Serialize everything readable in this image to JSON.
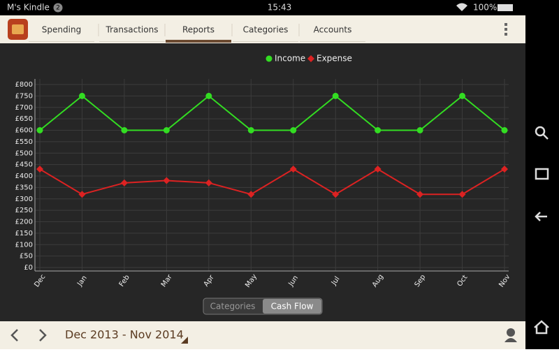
{
  "status": {
    "device": "M's Kindle",
    "badge": "2",
    "time": "15:43",
    "battery": "100%"
  },
  "tabs": [
    "Spending",
    "Transactions",
    "Reports",
    "Categories",
    "Accounts"
  ],
  "chart_data": {
    "type": "line",
    "categories": [
      "Dec",
      "Jan",
      "Feb",
      "Mar",
      "Apr",
      "May",
      "Jun",
      "Jul",
      "Aug",
      "Sep",
      "Oct",
      "Nov"
    ],
    "series": [
      {
        "name": "Income",
        "color": "#33dd22",
        "marker": "circle",
        "values": [
          600,
          750,
          600,
          600,
          750,
          600,
          600,
          750,
          600,
          600,
          750,
          600
        ]
      },
      {
        "name": "Expense",
        "color": "#dd2222",
        "marker": "diamond",
        "values": [
          430,
          320,
          370,
          380,
          370,
          320,
          430,
          320,
          430,
          320,
          320,
          430
        ]
      }
    ],
    "ylim": [
      0,
      800
    ],
    "yticks": [
      {
        "value": 0,
        "label": "£0"
      },
      {
        "value": 50,
        "label": "£50"
      },
      {
        "value": 100,
        "label": "£100"
      },
      {
        "value": 150,
        "label": "£150"
      },
      {
        "value": 200,
        "label": "£200"
      },
      {
        "value": 250,
        "label": "£250"
      },
      {
        "value": 300,
        "label": "£300"
      },
      {
        "value": 350,
        "label": "£350"
      },
      {
        "value": 400,
        "label": "£400"
      },
      {
        "value": 450,
        "label": "£450"
      },
      {
        "value": 500,
        "label": "£500"
      },
      {
        "value": 550,
        "label": "£550"
      },
      {
        "value": 600,
        "label": "£600"
      },
      {
        "value": 650,
        "label": "£650"
      },
      {
        "value": 700,
        "label": "£700"
      },
      {
        "value": 750,
        "label": "£750"
      },
      {
        "value": 800,
        "label": "£800"
      }
    ],
    "grid": true,
    "legend": "top"
  },
  "toggle": [
    "Categories",
    "Cash Flow"
  ],
  "footer": {
    "range": "Dec 2013 - Nov 2014"
  }
}
